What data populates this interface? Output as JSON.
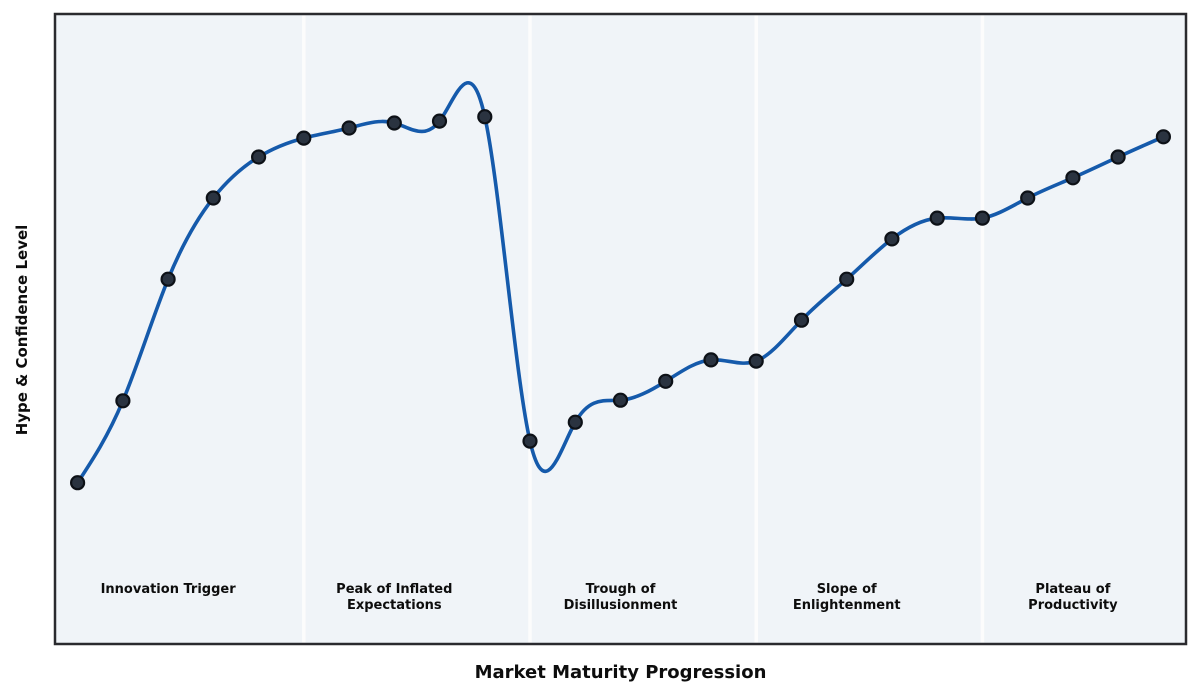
{
  "chart_data": {
    "type": "line",
    "title": "",
    "xlabel": "Market Maturity Progression",
    "ylabel": "Hype & Confidence Level",
    "x": [
      1,
      2,
      3,
      4,
      5,
      6,
      7,
      8,
      9,
      10,
      11,
      12,
      13,
      14,
      15,
      16,
      17,
      18,
      19,
      20,
      21,
      22,
      23,
      24,
      25
    ],
    "values": [
      25.6,
      38.6,
      57.9,
      70.8,
      77.3,
      80.3,
      81.9,
      82.7,
      83.0,
      83.7,
      32.2,
      35.2,
      38.7,
      41.7,
      45.1,
      44.9,
      51.4,
      57.9,
      64.3,
      67.6,
      67.6,
      70.8,
      74.0,
      77.3,
      80.5
    ],
    "xlim": [
      0.5,
      25.5
    ],
    "ylim": [
      0,
      100
    ],
    "grid": false,
    "legend": "none",
    "axis_ticks": "none",
    "curve_style": "smooth-spline",
    "phases": [
      {
        "label": "Innovation Trigger",
        "x_center": 3
      },
      {
        "label": "Peak of Inflated\nExpectations",
        "x_center": 8
      },
      {
        "label": "Trough of\nDisillusionment",
        "x_center": 13
      },
      {
        "label": "Slope of\nEnlightenment",
        "x_center": 18
      },
      {
        "label": "Plateau of\nProductivity",
        "x_center": 23
      }
    ],
    "phase_boundaries_x": [
      6,
      11,
      16,
      21
    ],
    "colors": {
      "line": "#155aab",
      "marker_fill": "#2a3340",
      "marker_edge": "#0d1117",
      "plot_bg": "#f0f4f8",
      "separator": "#fcfcfc",
      "border": "#2a2a2e",
      "page_bg": "#ffffff",
      "text": "#0d0d0d"
    },
    "line_width": 3.6,
    "marker_radius": 6.5
  }
}
